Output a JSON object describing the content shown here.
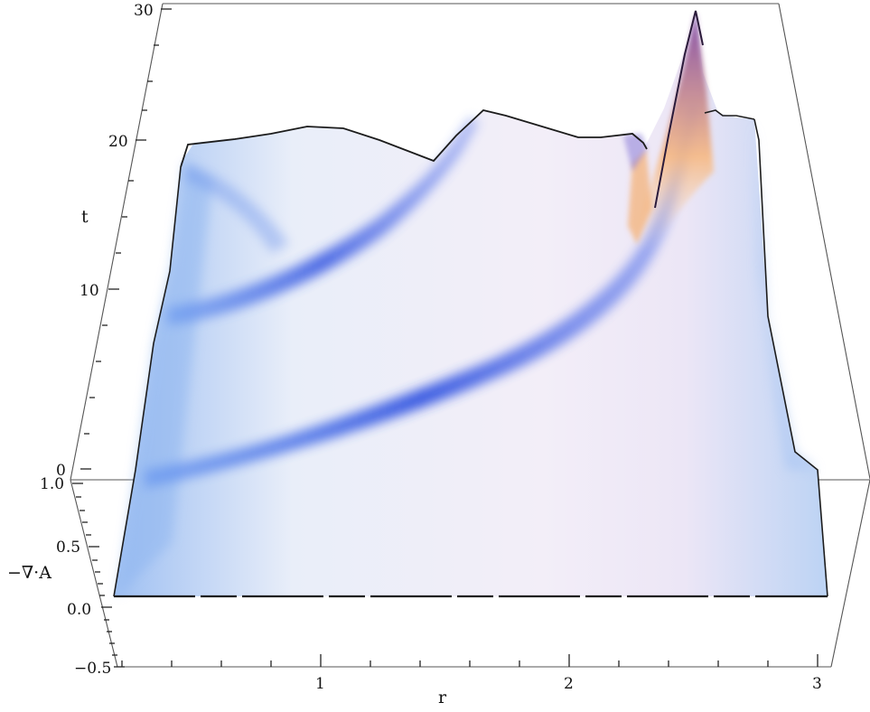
{
  "chart_data": {
    "type": "surface-3d",
    "axes": {
      "x": {
        "label": "r",
        "ticks": [
          "1",
          "2",
          "3"
        ],
        "range": [
          0,
          3
        ]
      },
      "t": {
        "label": "t",
        "ticks": [
          "0",
          "10",
          "20",
          "30"
        ],
        "range": [
          0,
          30
        ]
      },
      "z": {
        "label": "−∇·A",
        "ticks": [
          "−0.5",
          "0.0",
          "0.5",
          "1.0"
        ],
        "range": [
          -0.5,
          1.0
        ]
      }
    },
    "colors": {
      "low": "#2b4fe0",
      "base": "#bcd5f6",
      "mid": "#f4ecf8",
      "high": "#f6a765",
      "top": "#2a1a3a"
    },
    "wavefronts": [
      {
        "name": "",
        "description": "inner blue band",
        "t_start": 9,
        "t_end": 18
      },
      {
        "name": "",
        "description": "outer blue band",
        "t_start": 2,
        "t_end": 16
      }
    ],
    "peak": {
      "r": 2.5,
      "t": 30
    }
  }
}
